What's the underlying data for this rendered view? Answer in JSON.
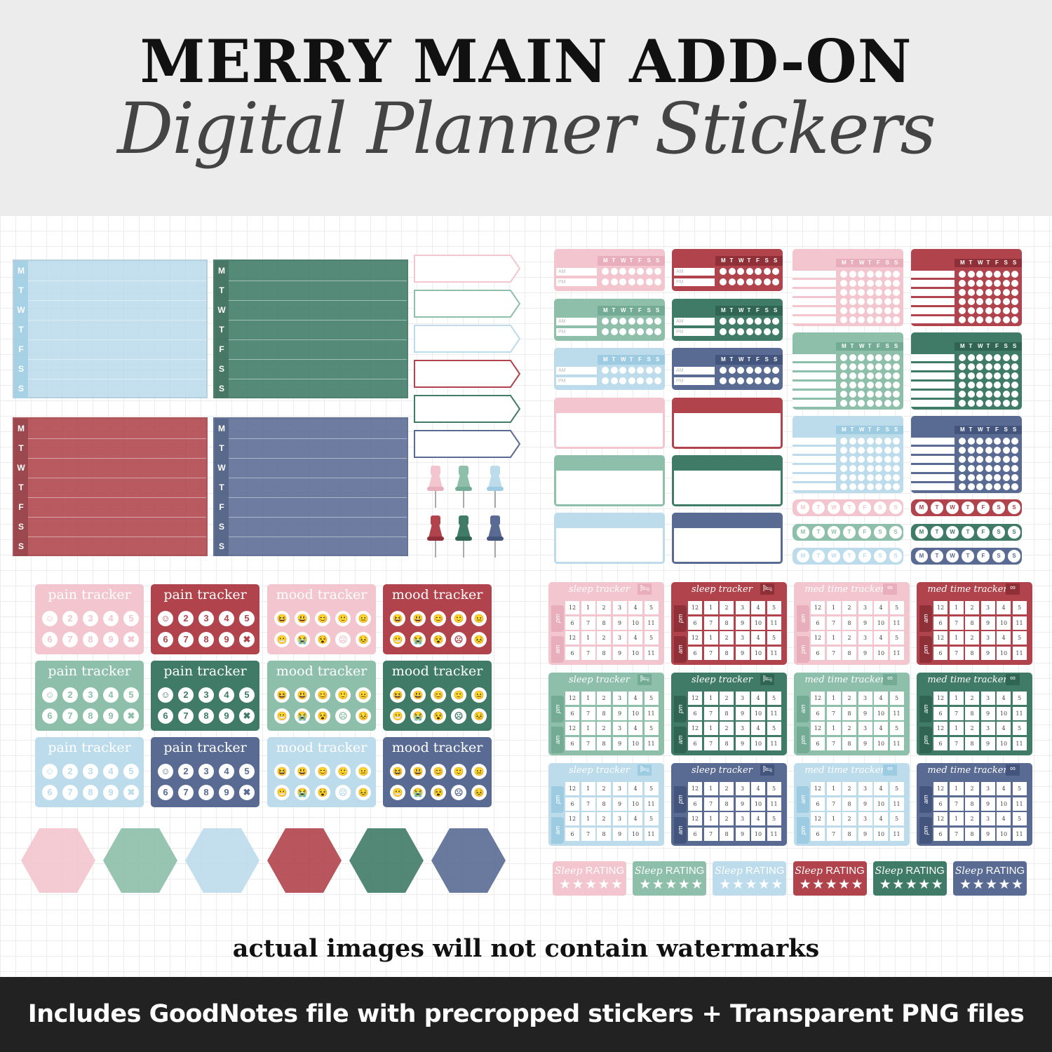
{
  "header": {
    "title": "MERRY MAIN ADD-ON",
    "subtitle": "Digital Planner Stickers"
  },
  "colors": {
    "pink": "#f3c5ce",
    "red": "#b0434b",
    "sage": "#8dbfaa",
    "green": "#3f7b66",
    "lightblue": "#bcdcec",
    "navy": "#5a6b93",
    "header_bg": "#ececec",
    "footer_bg": "#222222"
  },
  "weekly_boxes": {
    "days": [
      "M",
      "T",
      "W",
      "T",
      "F",
      "S",
      "S"
    ],
    "colors": [
      "lightblue",
      "green",
      "red",
      "navy"
    ]
  },
  "arrow_flags": {
    "colors": [
      "pink",
      "sage",
      "lightblue",
      "red",
      "green",
      "navy"
    ]
  },
  "pushpins": {
    "icon": "pushpin-icon",
    "colors": [
      "pink",
      "sage",
      "lightblue",
      "red",
      "green",
      "navy"
    ]
  },
  "pain_tracker": {
    "label": "pain tracker",
    "numbers": [
      "2",
      "3",
      "4",
      "5",
      "6",
      "7",
      "8",
      "9"
    ]
  },
  "mood_tracker": {
    "label": "mood tracker"
  },
  "tracker_grid": {
    "rows": [
      [
        "pink",
        "red",
        "pink",
        "red"
      ],
      [
        "sage",
        "green",
        "sage",
        "green"
      ],
      [
        "lightblue",
        "navy",
        "lightblue",
        "navy"
      ]
    ],
    "columns": [
      "pain",
      "pain",
      "mood",
      "mood"
    ]
  },
  "hexagons": {
    "colors": [
      "pink",
      "sage",
      "lightblue",
      "red",
      "green",
      "navy"
    ]
  },
  "habit_small": {
    "days": [
      "M",
      "T",
      "W",
      "T",
      "F",
      "S",
      "S"
    ],
    "am": "AM",
    "pm": "PM"
  },
  "sleep_tracker": {
    "label": "sleep tracker",
    "icon": "bed-icon",
    "top": "pm",
    "bottom": "am"
  },
  "med_tracker": {
    "label": "med time tracker",
    "icon": "pills-icon",
    "top": "am",
    "bottom": "pm"
  },
  "hours": [
    [
      "12",
      "1",
      "2",
      "3",
      "4",
      "5"
    ],
    [
      "6",
      "7",
      "8",
      "9",
      "10",
      "11"
    ]
  ],
  "sleep_rating": {
    "script": "Sleep",
    "label": "RATING",
    "stars": 5,
    "colors": [
      "pink",
      "sage",
      "lightblue",
      "red",
      "green",
      "navy"
    ]
  },
  "note": "actual images will not contain watermarks",
  "footer": "Includes GoodNotes file with precropped stickers + Transparent PNG files"
}
